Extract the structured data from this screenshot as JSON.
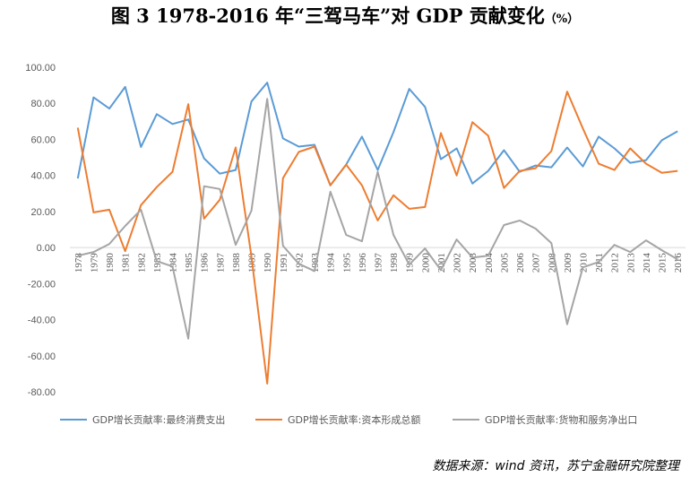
{
  "title": "图 3 1978-2016 年“三驾马车”对 GDP 贡献变化",
  "title_unit": "（%）",
  "source": "数据来源：wind 资讯，苏宁金融研究院整理",
  "colors": {
    "consumption": "#5B9BD5",
    "capital": "#ED7D31",
    "net_exports": "#A5A5A5",
    "axis": "#D9D9D9",
    "text": "#595959"
  },
  "chart_data": {
    "type": "line",
    "title": "图 3 1978-2016 年“三驾马车”对 GDP 贡献变化（%）",
    "ylim": [
      -80,
      100
    ],
    "y_ticks": [
      "100.00",
      "80.00",
      "60.00",
      "40.00",
      "20.00",
      "0.00",
      "-20.00",
      "-40.00",
      "-60.00",
      "-80.00"
    ],
    "x": [
      "1978",
      "1979",
      "1980",
      "1981",
      "1982",
      "1983",
      "1984",
      "1985",
      "1986",
      "1987",
      "1988",
      "1989",
      "1990",
      "1991",
      "1992",
      "1993",
      "1994",
      "1995",
      "1996",
      "1997",
      "1998",
      "1999",
      "2000",
      "2001",
      "2002",
      "2003",
      "2004",
      "2005",
      "2006",
      "2007",
      "2008",
      "2009",
      "2010",
      "2011",
      "2012",
      "2013",
      "2014",
      "2015",
      "2016"
    ],
    "legend_position": "bottom",
    "grid": false,
    "series": [
      {
        "name": "GDP增长贡献率:最终消费支出",
        "color": "#5B9BD5",
        "values": [
          38.3,
          83.3,
          77.1,
          89.1,
          55.8,
          74.0,
          68.5,
          71.0,
          49.5,
          41.0,
          43.0,
          81.0,
          91.5,
          60.5,
          56.0,
          57.0,
          34.5,
          46.0,
          61.5,
          43.0,
          64.0,
          88.0,
          78.0,
          49.0,
          55.0,
          35.5,
          42.5,
          54.0,
          42.0,
          45.5,
          44.5,
          55.5,
          45.0,
          61.5,
          55.0,
          47.0,
          48.5,
          59.5,
          64.5
        ]
      },
      {
        "name": "GDP增长贡献率:资本形成总额",
        "color": "#ED7D31",
        "values": [
          66.5,
          19.5,
          21.0,
          -2.0,
          23.5,
          33.5,
          42.0,
          79.5,
          16.0,
          26.5,
          55.5,
          -5.0,
          -75.5,
          38.5,
          53.0,
          56.0,
          34.5,
          46.0,
          34.5,
          15.0,
          29.0,
          21.5,
          22.5,
          63.5,
          40.0,
          69.5,
          62.0,
          33.0,
          42.5,
          44.0,
          53.5,
          86.5,
          66.0,
          46.5,
          43.0,
          55.0,
          46.5,
          41.5,
          42.5
        ]
      },
      {
        "name": "GDP增长贡献率:货物和服务净出口",
        "color": "#A5A5A5",
        "values": [
          -4.5,
          -2.5,
          2.0,
          12.0,
          21.0,
          -7.5,
          -10.5,
          -50.5,
          34.0,
          32.5,
          1.5,
          20.5,
          82.5,
          1.0,
          -9.0,
          -13.0,
          31.0,
          7.0,
          3.5,
          42.0,
          7.0,
          -9.5,
          -0.5,
          -12.5,
          4.5,
          -5.5,
          -4.5,
          12.5,
          15.0,
          10.5,
          2.5,
          -42.5,
          -11.0,
          -8.0,
          1.5,
          -2.5,
          4.0,
          -1.5,
          -6.5
        ]
      }
    ]
  }
}
